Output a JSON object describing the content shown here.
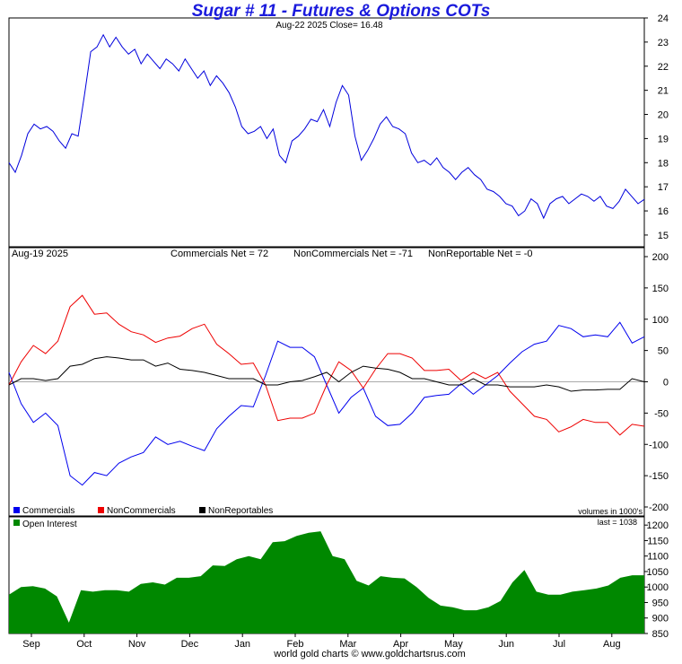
{
  "title": "Sugar # 11 - Futures & Options COTs",
  "footer": "world gold charts © www.goldchartsrus.com",
  "colors": {
    "price": "#0000dd",
    "commercials": "#0000ee",
    "noncommercials": "#ee0000",
    "nonreportables": "#000000",
    "open_interest": "#008800",
    "zero_line": "#aaaaaa"
  },
  "x_axis": {
    "months": [
      "Sep",
      "Oct",
      "Nov",
      "Dec",
      "Jan",
      "Feb",
      "Mar",
      "Apr",
      "May",
      "Jun",
      "Jul",
      "Aug"
    ]
  },
  "chart_data": [
    {
      "type": "line",
      "name": "price",
      "annotation": "Aug-22 2025 Close= 16.48",
      "ylim": [
        14.7,
        24
      ],
      "yticks": [
        15,
        16,
        17,
        18,
        19,
        20,
        21,
        22,
        23,
        24
      ],
      "series": [
        {
          "values": [
            18.0,
            17.6,
            18.3,
            19.2,
            19.6,
            19.4,
            19.5,
            19.3,
            18.9,
            18.6,
            19.2,
            19.1,
            20.8,
            22.6,
            22.8,
            23.3,
            22.8,
            23.2,
            22.8,
            22.5,
            22.7,
            22.1,
            22.5,
            22.2,
            21.9,
            22.3,
            22.1,
            21.8,
            22.3,
            21.9,
            21.5,
            21.8,
            21.2,
            21.6,
            21.3,
            20.9,
            20.3,
            19.5,
            19.2,
            19.3,
            19.5,
            19.0,
            19.4,
            18.3,
            18.0,
            18.9,
            19.1,
            19.4,
            19.8,
            19.7,
            20.2,
            19.5,
            20.5,
            21.2,
            20.8,
            19.1,
            18.1,
            18.5,
            19.0,
            19.6,
            19.9,
            19.5,
            19.4,
            19.2,
            18.4,
            18.0,
            18.1,
            17.9,
            18.2,
            17.8,
            17.6,
            17.3,
            17.6,
            17.8,
            17.5,
            17.3,
            16.9,
            16.8,
            16.6,
            16.3,
            16.2,
            15.8,
            16.0,
            16.5,
            16.3,
            15.7,
            16.3,
            16.5,
            16.6,
            16.3,
            16.5,
            16.7,
            16.6,
            16.4,
            16.6,
            16.2,
            16.1,
            16.4,
            16.9,
            16.6,
            16.3,
            16.48
          ]
        }
      ]
    },
    {
      "type": "line",
      "name": "cot",
      "date_label": "Aug-19 2025",
      "summary": {
        "commercials": "Commercials Net = 72",
        "noncommercials": "NonCommercials Net = -71",
        "nonreportables": "NonReportable Net = -0"
      },
      "ylim": [
        -200,
        200
      ],
      "yticks": [
        200,
        150,
        100,
        50,
        0,
        -50,
        -100,
        -150,
        -200
      ],
      "legend": [
        "Commercials",
        "NonCommercials",
        "NonReportables"
      ],
      "units_note": "volumes in 1000's",
      "series": [
        {
          "name": "Commercials",
          "values": [
            15,
            -35,
            -65,
            -50,
            -70,
            -150,
            -165,
            -145,
            -150,
            -130,
            -120,
            -113,
            -88,
            -100,
            -95,
            -103,
            -110,
            -75,
            -55,
            -38,
            -40,
            10,
            65,
            55,
            55,
            40,
            -5,
            -50,
            -25,
            -10,
            -55,
            -70,
            -68,
            -50,
            -25,
            -22,
            -20,
            -3,
            -20,
            -5,
            10,
            30,
            48,
            60,
            65,
            90,
            85,
            72,
            75,
            72,
            95,
            62,
            72
          ]
        },
        {
          "name": "NonCommercials",
          "values": [
            -5,
            32,
            58,
            45,
            65,
            120,
            138,
            108,
            110,
            92,
            80,
            75,
            63,
            70,
            73,
            85,
            92,
            60,
            45,
            28,
            30,
            -5,
            -62,
            -58,
            -58,
            -50,
            -5,
            32,
            18,
            -10,
            20,
            45,
            45,
            38,
            18,
            18,
            20,
            2,
            15,
            5,
            15,
            -15,
            -35,
            -55,
            -60,
            -80,
            -72,
            -60,
            -65,
            -65,
            -85,
            -68,
            -71
          ]
        },
        {
          "name": "NonReportables",
          "values": [
            -5,
            5,
            5,
            2,
            5,
            25,
            28,
            37,
            40,
            38,
            35,
            35,
            25,
            30,
            20,
            18,
            15,
            10,
            5,
            5,
            5,
            -5,
            -5,
            0,
            2,
            8,
            15,
            0,
            15,
            25,
            22,
            20,
            15,
            5,
            5,
            0,
            -5,
            -5,
            5,
            -5,
            -5,
            -8,
            -8,
            -8,
            -5,
            -8,
            -15,
            -13,
            -13,
            -12,
            -12,
            5,
            0
          ]
        }
      ]
    },
    {
      "type": "area",
      "name": "open_interest",
      "legend": [
        "Open Interest"
      ],
      "last_label": "last = 1038",
      "ylim": [
        850,
        1215
      ],
      "yticks": [
        850,
        900,
        950,
        1000,
        1050,
        1100,
        1150,
        1200
      ],
      "series": [
        {
          "name": "Open Interest",
          "values": [
            975,
            1000,
            1003,
            995,
            970,
            885,
            990,
            985,
            990,
            990,
            985,
            1010,
            1015,
            1008,
            1030,
            1030,
            1035,
            1070,
            1068,
            1090,
            1100,
            1090,
            1145,
            1148,
            1165,
            1175,
            1180,
            1100,
            1090,
            1020,
            1005,
            1035,
            1030,
            1028,
            1000,
            965,
            940,
            935,
            925,
            925,
            935,
            955,
            1015,
            1055,
            985,
            975,
            975,
            985,
            990,
            995,
            1005,
            1030,
            1038,
            1038
          ]
        }
      ]
    }
  ]
}
